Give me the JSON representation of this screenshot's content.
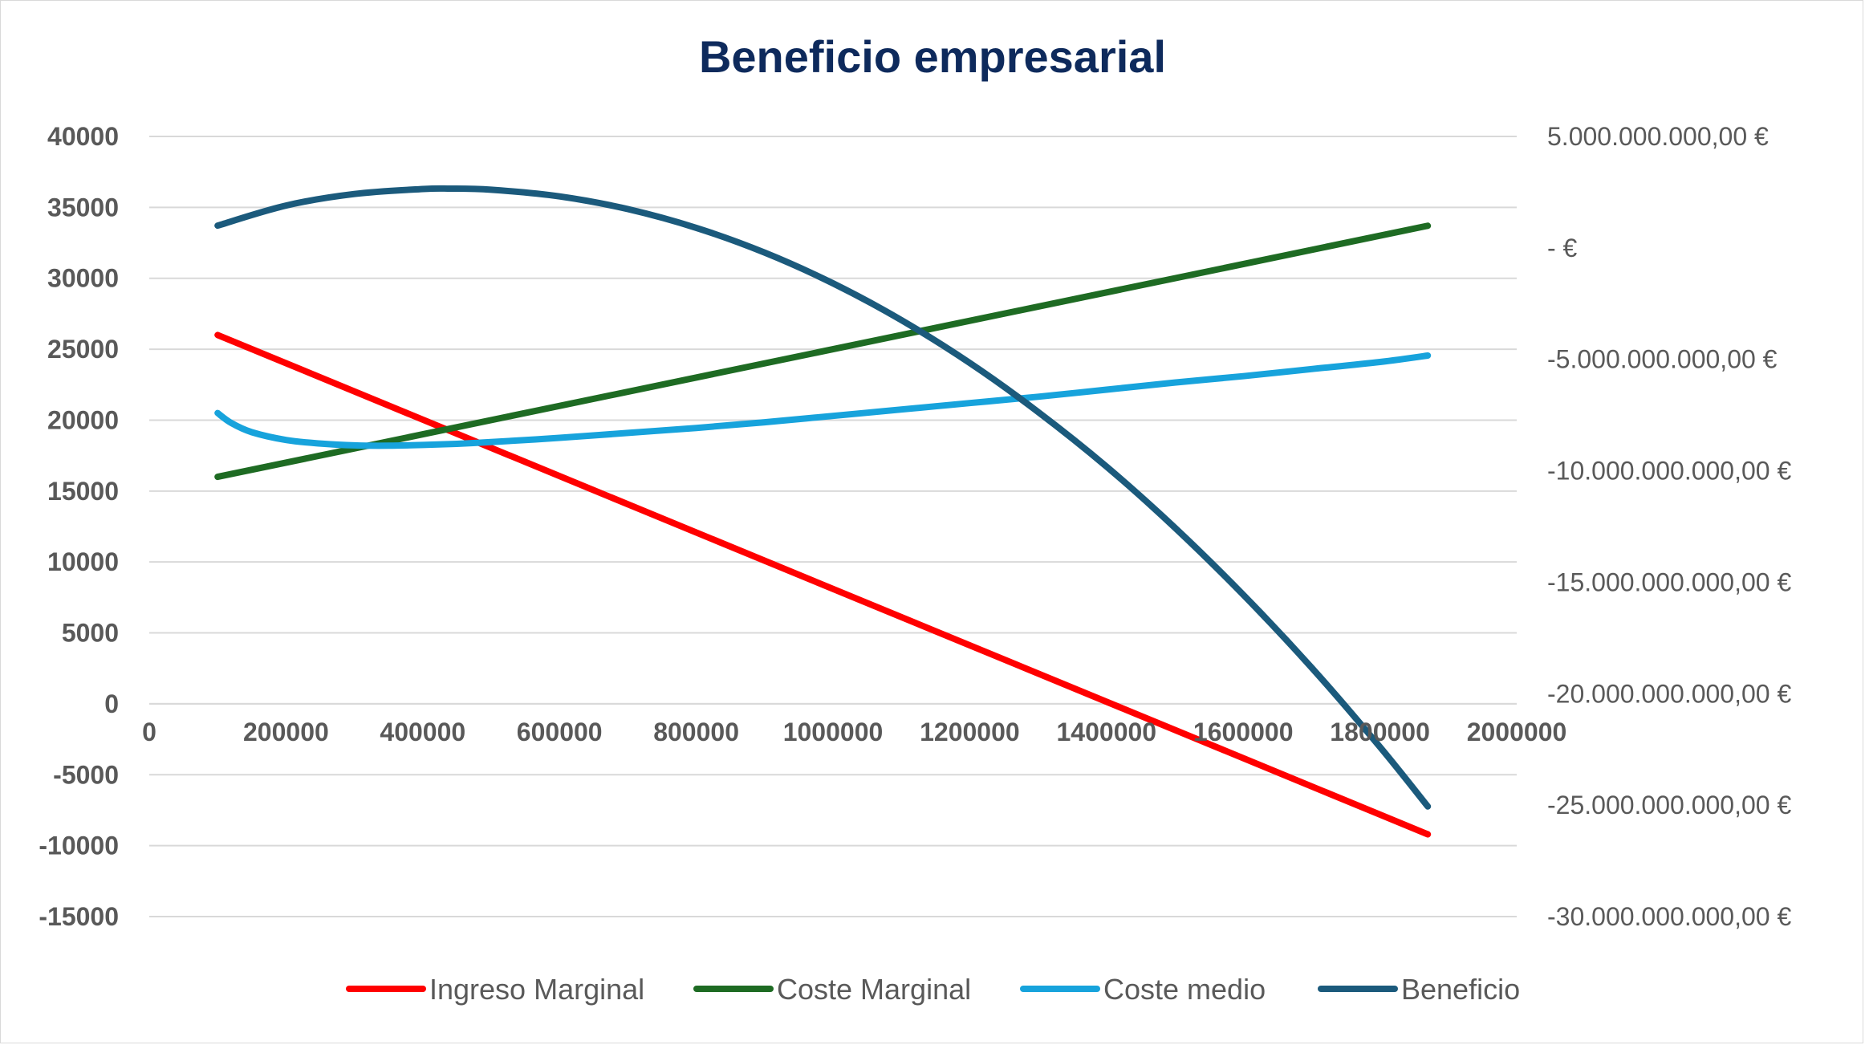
{
  "chart_data": {
    "type": "line",
    "title": "Beneficio empresarial",
    "xlabel": "",
    "ylabel": "",
    "x_ticks": [
      "0",
      "200000",
      "400000",
      "600000",
      "800000",
      "1000000",
      "1200000",
      "1400000",
      "1600000",
      "1800000",
      "2000000"
    ],
    "xlim": [
      0,
      2000000
    ],
    "y_left_ticks": [
      "40000",
      "35000",
      "30000",
      "25000",
      "20000",
      "15000",
      "10000",
      "5000",
      "0",
      "-5000",
      "-10000",
      "-15000"
    ],
    "ylim_left": [
      -15000,
      40000
    ],
    "y_right_ticks": [
      "5.000.000.000,00 €",
      "-   €",
      "-5.000.000.000,00 €",
      "-10.000.000.000,00 €",
      "-15.000.000.000,00 €",
      "-20.000.000.000,00 €",
      "-25.000.000.000,00 €",
      "-30.000.000.000,00 €"
    ],
    "ylim_right": [
      -30000000000,
      5000000000
    ],
    "grid": true,
    "legend_position": "bottom",
    "series": [
      {
        "name": "Ingreso Marginal",
        "axis": "left",
        "color": "#ff0000",
        "x": [
          100000,
          1870000
        ],
        "y": [
          26000,
          -9200
        ]
      },
      {
        "name": "Coste Marginal",
        "axis": "left",
        "color": "#1e6b23",
        "x": [
          100000,
          1870000
        ],
        "y": [
          16000,
          33700
        ]
      },
      {
        "name": "Coste medio",
        "axis": "left",
        "color": "#17a3dc",
        "x": [
          100000,
          120000,
          150000,
          200000,
          250000,
          300000,
          350000,
          400000,
          450000,
          500000,
          600000,
          700000,
          800000,
          900000,
          1000000,
          1100000,
          1200000,
          1300000,
          1400000,
          1500000,
          1600000,
          1700000,
          1800000,
          1870000
        ],
        "y": [
          20500,
          19800,
          19150,
          18600,
          18350,
          18220,
          18200,
          18250,
          18330,
          18450,
          18750,
          19100,
          19450,
          19850,
          20300,
          20750,
          21200,
          21650,
          22150,
          22650,
          23100,
          23600,
          24100,
          24550
        ]
      },
      {
        "name": "Beneficio",
        "axis": "right",
        "color": "#1b5a7c",
        "x": [
          100000,
          200000,
          300000,
          400000,
          440000,
          500000,
          600000,
          700000,
          800000,
          900000,
          1000000,
          1100000,
          1200000,
          1300000,
          1400000,
          1500000,
          1600000,
          1700000,
          1800000,
          1870000
        ],
        "y": [
          1000000000,
          1900000000,
          2420000000,
          2640000000,
          2660000000,
          2610000000,
          2310000000,
          1740000000,
          900000000,
          -210000000,
          -1590000000,
          -3240000000,
          -5160000000,
          -7360000000,
          -9810000000,
          -12550000000,
          -15560000000,
          -18830000000,
          -22390000000,
          -25060000000
        ]
      }
    ]
  }
}
